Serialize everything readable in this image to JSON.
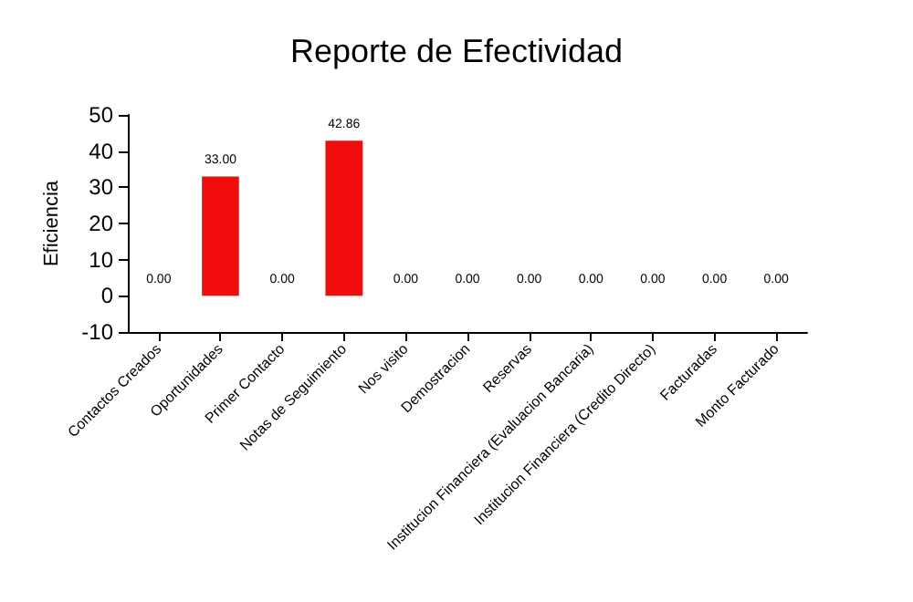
{
  "chart_data": {
    "type": "bar",
    "title": "Reporte de Efectividad",
    "ylabel": "Eficiencia",
    "categories": [
      "Contactos Creados",
      "Oportunidades",
      "Primer Contacto",
      "Notas de Seguimiento",
      "Nos visito",
      "Demostracion",
      "Reservas",
      "Institucion Financiera (Evaluacion Bancaria)",
      "Institucion Financiera (Credito Directo)",
      "Facturadas",
      "Monto Facturado"
    ],
    "values": [
      0,
      33,
      0,
      42.86,
      0,
      0,
      0,
      0,
      0,
      0,
      0
    ],
    "value_labels": [
      "0.00",
      "33.00",
      "0.00",
      "42.86",
      "0.00",
      "0.00",
      "0.00",
      "0.00",
      "0.00",
      "0.00",
      "0.00"
    ],
    "color": "#f20d0d",
    "ylim": [
      -10,
      50
    ],
    "yticks": [
      -10,
      0,
      10,
      20,
      30,
      40,
      50
    ],
    "grid": false
  }
}
